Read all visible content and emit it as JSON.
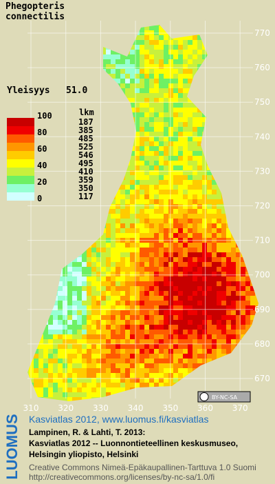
{
  "map": {
    "title_line1": "Phegopteris",
    "title_line2": "connectilis",
    "prevalence_label": "Yleisyys",
    "prevalence_value": "51.0",
    "legend_header": "lkm",
    "legend_scale": [
      "100",
      "80",
      "60",
      "40",
      "20",
      "0"
    ],
    "legend_counts": [
      "187",
      "385",
      "485",
      "525",
      "546",
      "495",
      "410",
      "359",
      "350",
      "117"
    ],
    "legend_colors": [
      "#c80000",
      "#f00000",
      "#ff5a00",
      "#ff9600",
      "#ffcc00",
      "#ffff00",
      "#c8f03c",
      "#6ef064",
      "#96ffd2",
      "#d2ffff",
      "#ffffff"
    ],
    "yticks": [
      770,
      760,
      750,
      740,
      730,
      720,
      710,
      700,
      690,
      680,
      670
    ],
    "xticks": [
      310,
      320,
      330,
      340,
      350,
      360,
      370
    ],
    "license_badge": "BY-NC-SA"
  },
  "footer": {
    "brand": "LUOMUS",
    "link": "Kasviatlas 2012, www.luomus.fi/kasviatlas",
    "citation1": "Lampinen, R. & Lahti, T. 2013:",
    "citation2": "Kasviatlas 2012 -- Luonnontieteellinen keskusmuseo,",
    "citation3": "Helsingin yliopisto, Helsinki",
    "license": "Creative Commons Nimeä-Epäkaupallinen-Tarttuva 1.0 Suomi",
    "license_url": "http://creativecommons.org/licenses/by-nc-sa/1.0/fi"
  }
}
